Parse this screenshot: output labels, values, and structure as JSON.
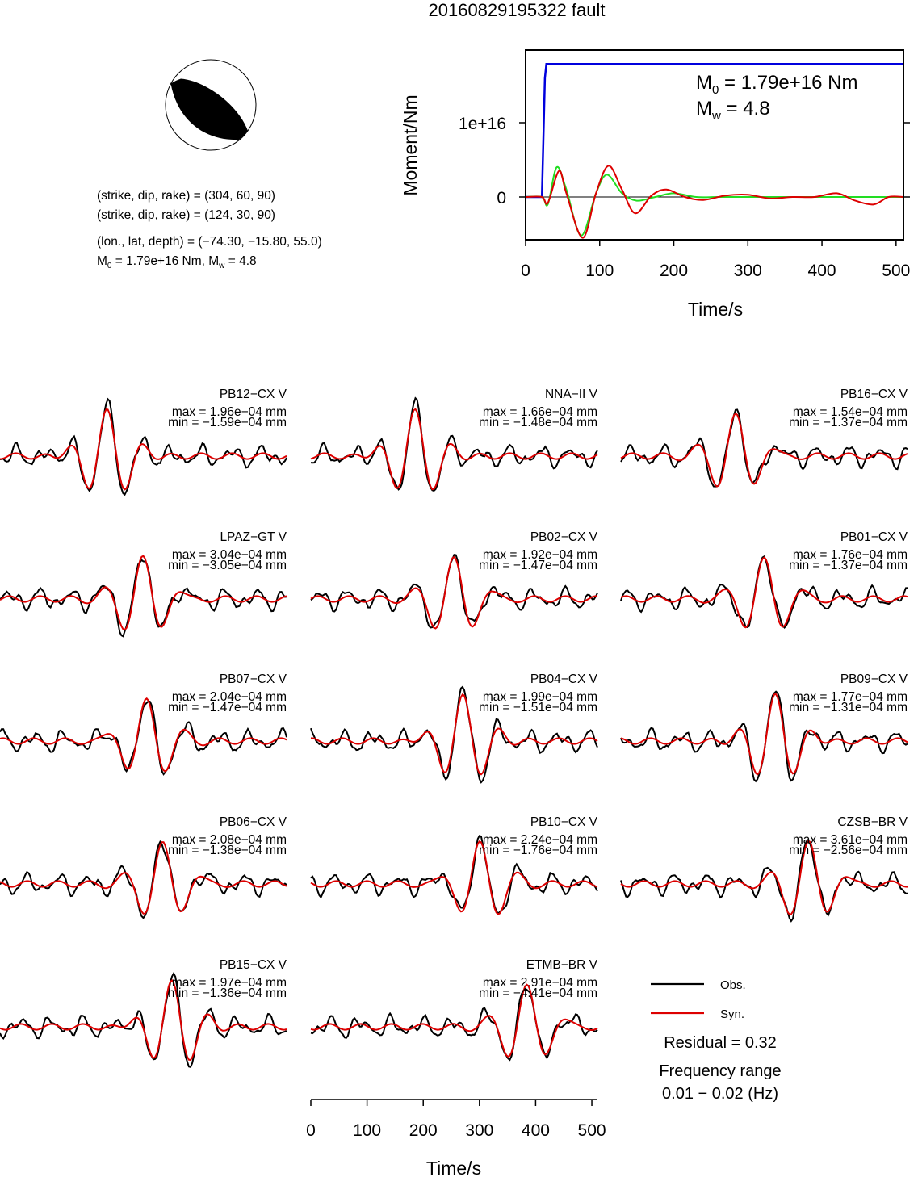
{
  "title": "20160829195322 fault",
  "info": {
    "plane1": "(strike, dip, rake) = (304, 60, 90)",
    "plane2": "(strike, dip, rake) = (124, 30, 90)",
    "location": "(lon., lat, depth) = (−74.30, −15.80, 55.0)",
    "m0_part": "M",
    "m0_sub": "0",
    "m0_rest": " = 1.79e+16 Nm, M",
    "mw_sub": "w",
    "mw_rest": " = 4.8"
  },
  "moment_panel": {
    "label_m0_main": "M",
    "label_m0_sub": "0",
    "label_m0_rest": " = 1.79e+16 Nm",
    "label_mw_main": "M",
    "label_mw_sub": "w",
    "label_mw_rest": " = 4.8",
    "ylabel": "Moment/Nm",
    "xlabel": "Time/s",
    "yticks": [
      "0",
      "1e+16"
    ],
    "xticks": [
      "0",
      "100",
      "200",
      "300",
      "400",
      "500"
    ]
  },
  "legend": {
    "obs": "Obs.",
    "syn": "Syn.",
    "residual": "Residual = 0.32",
    "freq_title": "Frequency range",
    "freq_value": "0.01 − 0.02 (Hz)"
  },
  "colors": {
    "observed": "#000000",
    "synthetic": "#dd0000",
    "cumulative_moment": "#0000dd",
    "moment_rate_a": "#22dd22",
    "moment_rate_b": "#dd0000"
  },
  "chart_data": [
    {
      "type": "line",
      "name": "moment function",
      "xlabel": "Time/s",
      "ylabel": "Moment/Nm",
      "xlim": [
        0,
        510
      ],
      "xticks": [
        0,
        100,
        200,
        300,
        400,
        500
      ],
      "yticks": [
        0,
        1e+16
      ],
      "series": [
        {
          "role": "cumulative",
          "color": "#0000dd",
          "x": [
            0,
            22,
            26,
            28,
            510
          ],
          "y": [
            0,
            0,
            1.6e+16,
            1.79e+16,
            1.79e+16
          ]
        },
        {
          "role": "green",
          "color": "#22dd22",
          "x": [
            0,
            22,
            30,
            42,
            55,
            75,
            95,
            110,
            130,
            150,
            175,
            200,
            230,
            260,
            300,
            350,
            400,
            450,
            510
          ],
          "y": [
            0,
            0,
            -1000000000000000.0,
            4000000000000000.0,
            1000000000000000.0,
            -5200000000000000.0,
            500000000000000.0,
            3000000000000000.0,
            500000000000000.0,
            -500000000000000.0,
            0,
            500000000000000.0,
            0,
            0,
            0,
            0,
            0,
            0,
            0
          ]
        },
        {
          "role": "red",
          "color": "#dd0000",
          "x": [
            0,
            22,
            30,
            45,
            55,
            77,
            95,
            112,
            130,
            148,
            170,
            190,
            215,
            240,
            270,
            300,
            330,
            360,
            390,
            420,
            445,
            470,
            490,
            510
          ],
          "y": [
            0,
            0,
            -800000000000000.0,
            3500000000000000.0,
            500000000000000.0,
            -5500000000000000.0,
            500000000000000.0,
            4200000000000000.0,
            1000000000000000.0,
            -2200000000000000.0,
            200000000000000.0,
            1000000000000000.0,
            0,
            -400000000000000.0,
            200000000000000.0,
            300000000000000.0,
            -200000000000000.0,
            0,
            0,
            500000000000000.0,
            -500000000000000.0,
            -1000000000000000.0,
            0,
            0
          ]
        }
      ]
    },
    {
      "type": "line",
      "name": "waveforms",
      "xlabel": "Time/s",
      "xlim": [
        0,
        510
      ],
      "xticks": [
        0,
        100,
        200,
        300,
        400,
        500
      ],
      "stations": [
        {
          "name": "PB12−CX V",
          "max": "max = 1.96e−04 mm",
          "min": "min = −1.59e−04 mm",
          "peak_time": 190
        },
        {
          "name": "NNA−II V",
          "max": "max = 1.66e−04 mm",
          "min": "min = −1.48e−04 mm",
          "peak_time": 185
        },
        {
          "name": "PB16−CX V",
          "max": "max = 1.54e−04 mm",
          "min": "min = −1.37e−04 mm",
          "peak_time": 205
        },
        {
          "name": "LPAZ−GT V",
          "max": "max = 3.04e−04 mm",
          "min": "min = −3.05e−04 mm",
          "peak_time": 255
        },
        {
          "name": "PB02−CX V",
          "max": "max = 1.92e−04 mm",
          "min": "min = −1.47e−04 mm",
          "peak_time": 255
        },
        {
          "name": "PB01−CX V",
          "max": "max = 1.76e−04 mm",
          "min": "min = −1.37e−04 mm",
          "peak_time": 255
        },
        {
          "name": "PB07−CX V",
          "max": "max = 2.04e−04 mm",
          "min": "min = −1.47e−04 mm",
          "peak_time": 260
        },
        {
          "name": "PB04−CX V",
          "max": "max = 1.99e−04 mm",
          "min": "min = −1.51e−04 mm",
          "peak_time": 270
        },
        {
          "name": "PB09−CX V",
          "max": "max = 1.77e−04 mm",
          "min": "min = −1.31e−04 mm",
          "peak_time": 275
        },
        {
          "name": "PB06−CX V",
          "max": "max = 2.08e−04 mm",
          "min": "min = −1.38e−04 mm",
          "peak_time": 290
        },
        {
          "name": "PB10−CX V",
          "max": "max = 2.24e−04 mm",
          "min": "min = −1.76e−04 mm",
          "peak_time": 300
        },
        {
          "name": "CZSB−BR V",
          "max": "max = 3.61e−04 mm",
          "min": "min = −2.56e−04 mm",
          "peak_time": 335
        },
        {
          "name": "PB15−CX V",
          "max": "max = 1.97e−04 mm",
          "min": "min = −1.36e−04 mm",
          "peak_time": 305
        },
        {
          "name": "ETMB−BR V",
          "max": "max = 2.91e−04 mm",
          "min": "min = −4.41e−04 mm",
          "peak_time": 385
        }
      ]
    }
  ]
}
